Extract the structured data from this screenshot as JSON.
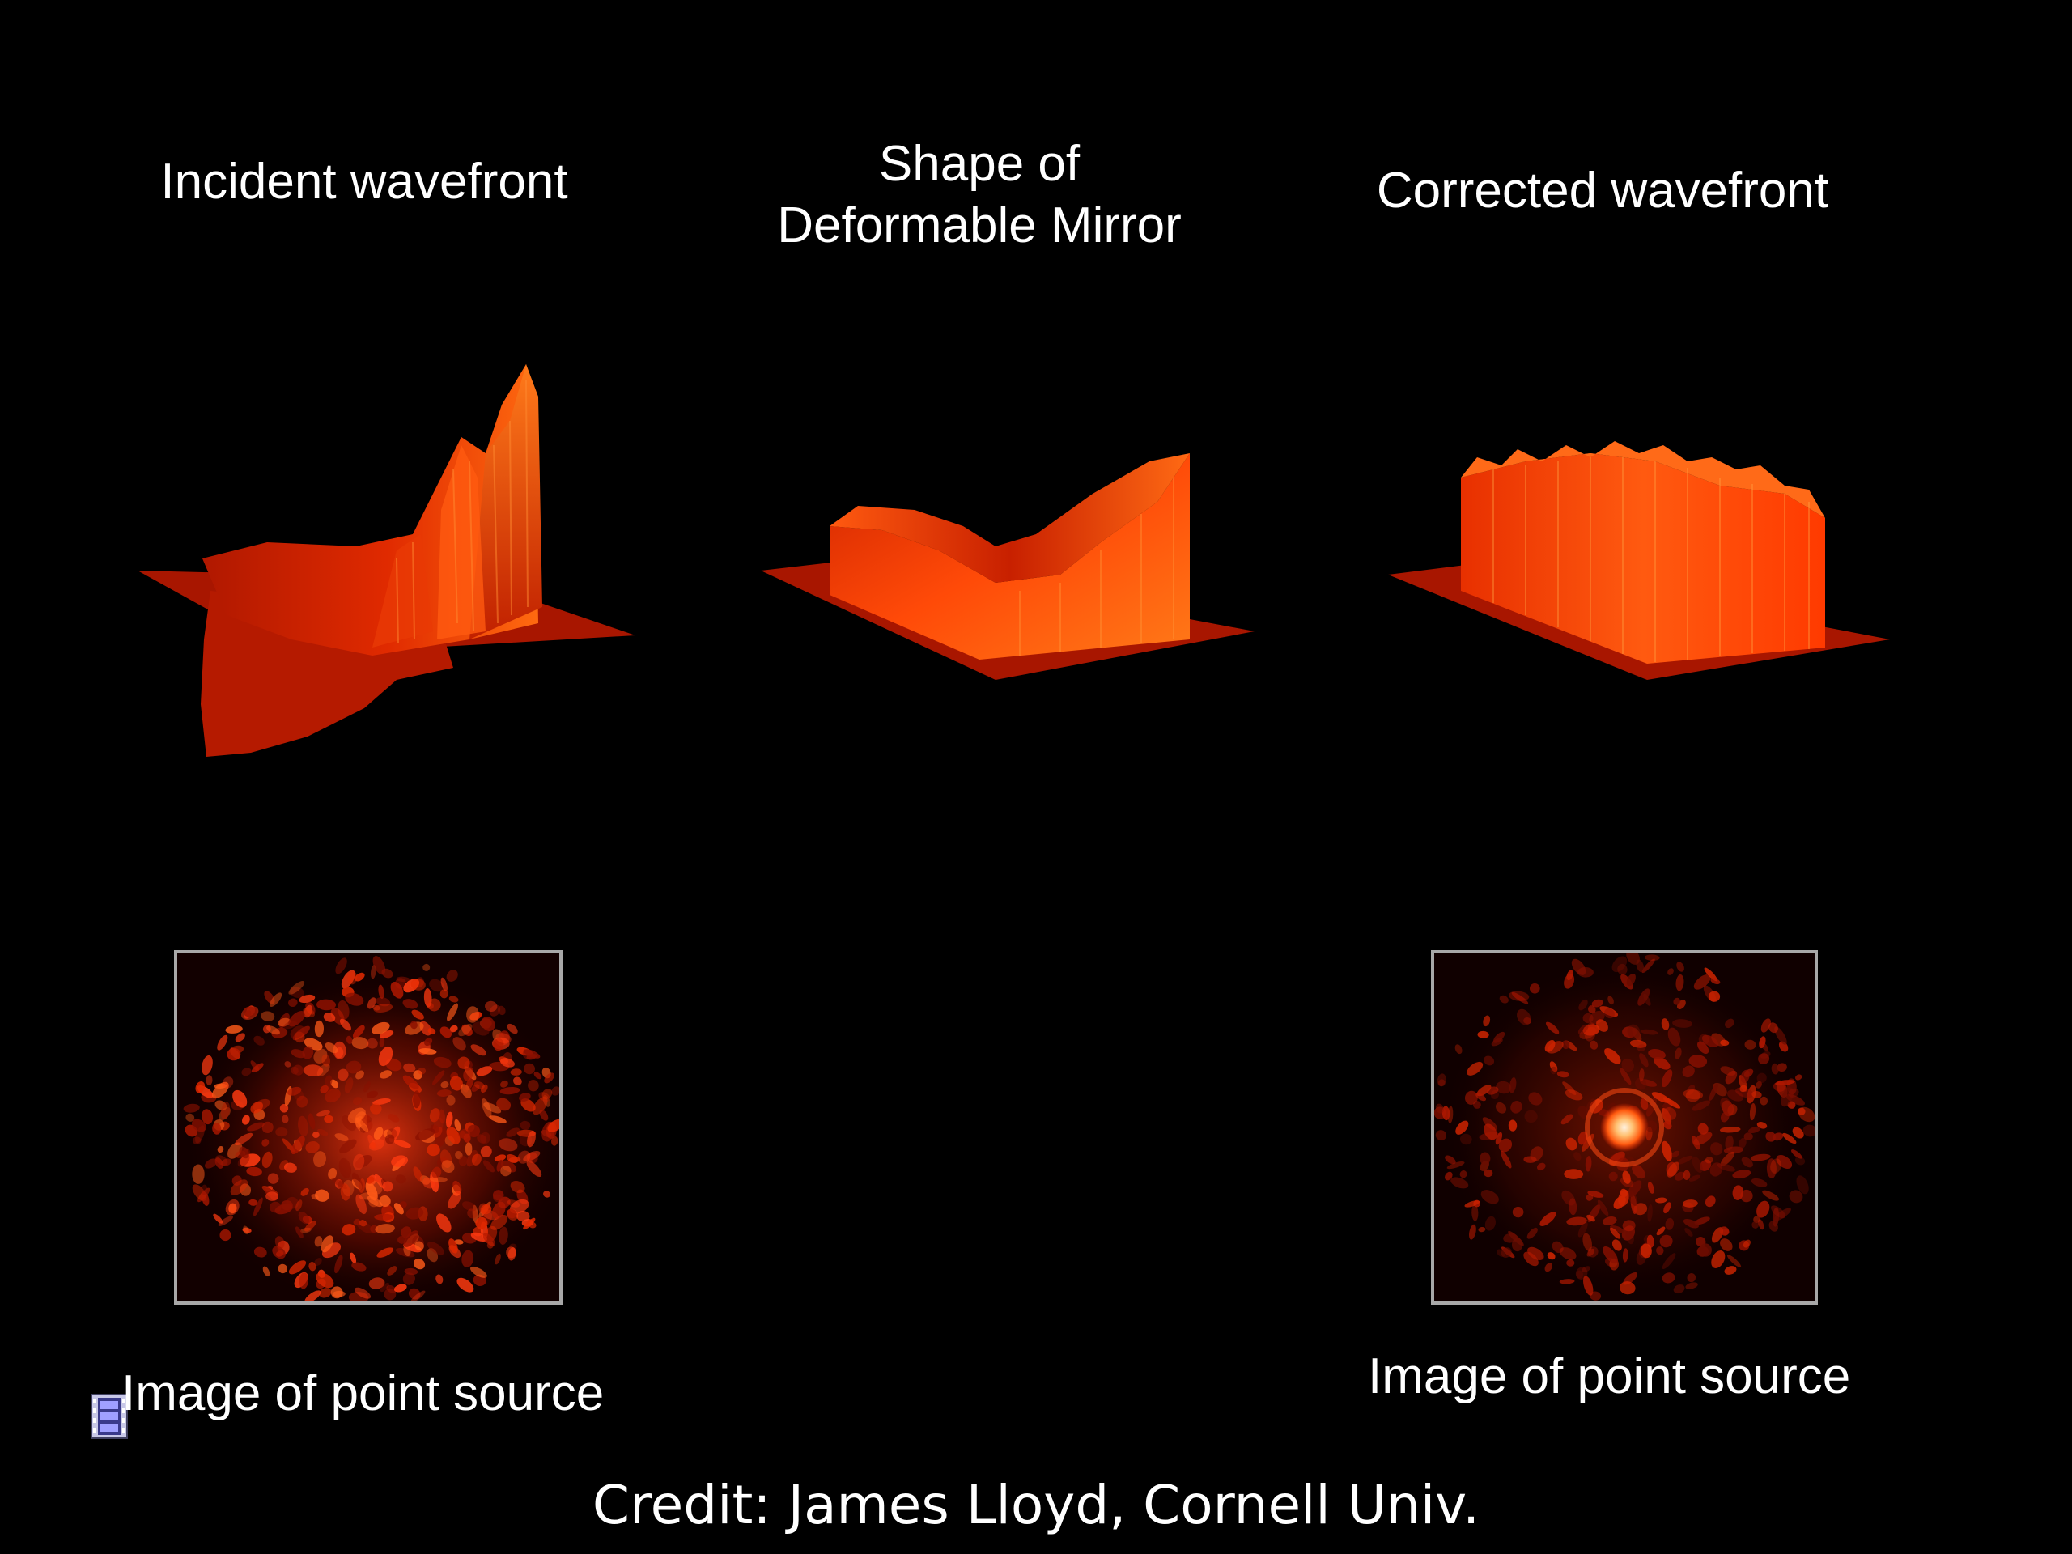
{
  "captions": {
    "incident": "Incident wavefront",
    "mirror_line1": "Shape of",
    "mirror_line2": "Deformable Mirror",
    "corrected": "Corrected wavefront",
    "psf_left": "Image of point source",
    "psf_right": "Image of point source"
  },
  "credit": "Credit: James Lloyd, Cornell Univ.",
  "icons": {
    "movie": "film-strip-icon"
  },
  "colors": {
    "background": "#000000",
    "surface_dark": "#b81a00",
    "surface_mid": "#ff3a00",
    "surface_bright": "#ff8a1a",
    "frame": "#a8a8a8"
  }
}
